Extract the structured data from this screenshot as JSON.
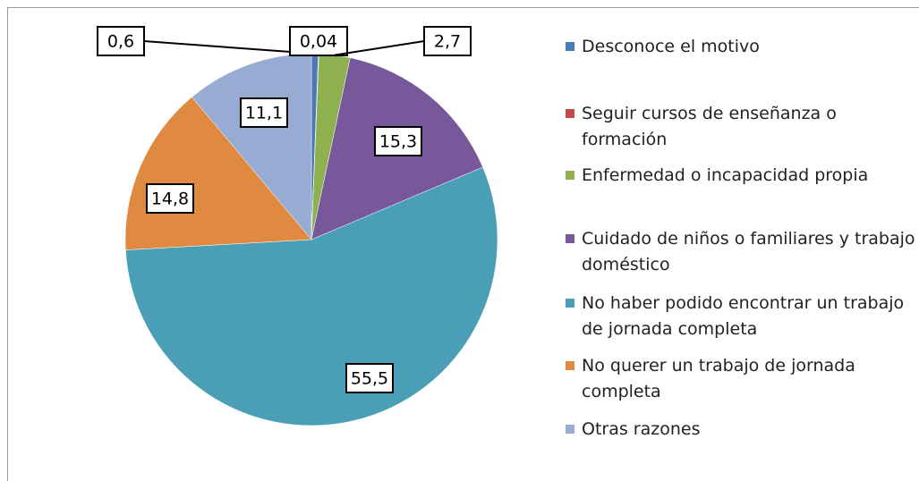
{
  "chart_data": {
    "type": "pie",
    "categories": [
      "Desconoce el motivo",
      "Seguir cursos de enseñanza o formación",
      "Enfermedad o incapacidad propia",
      "Cuidado de niños o familiares y trabajo doméstico",
      "No haber podido encontrar un trabajo de jornada completa",
      "No querer un trabajo de jornada completa",
      "Otras razones"
    ],
    "values": [
      0.6,
      0.04,
      2.7,
      15.3,
      55.5,
      14.8,
      11.1
    ],
    "value_labels": [
      "0,6",
      "0,04",
      "2,7",
      "15,3",
      "55,5",
      "14,8",
      "11,1"
    ],
    "colors": [
      "#4a7bb7",
      "#be4b48",
      "#8fb04f",
      "#76589b",
      "#4a9fb6",
      "#e08a41",
      "#98abd2"
    ],
    "legend": "right"
  }
}
